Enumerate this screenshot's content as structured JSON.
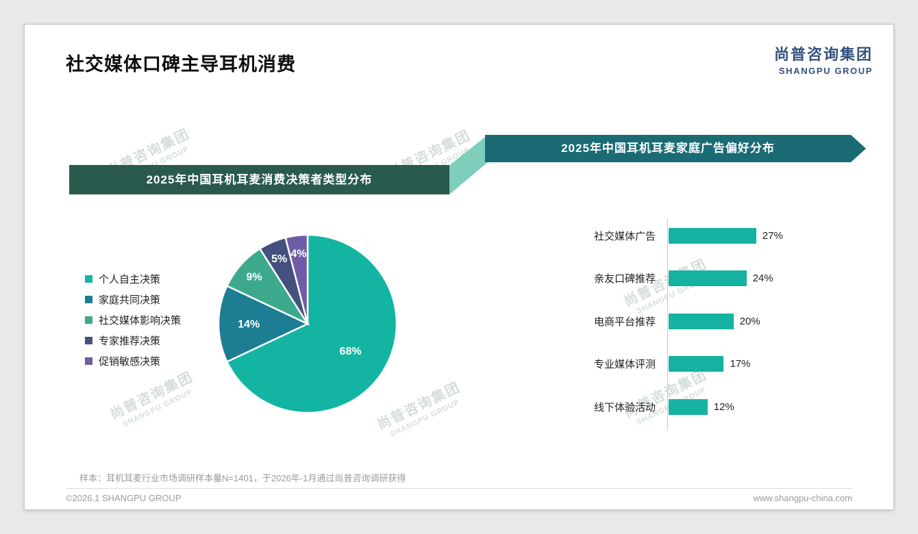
{
  "page": {
    "title": "社交媒体口碑主导耳机消费",
    "logo": {
      "cn": "尚普咨询集团",
      "en": "SHANGPU GROUP"
    },
    "watermark": {
      "cn": "尚普咨询集团",
      "en": "SHANGPU GROUP"
    },
    "footnote": "样本：耳机耳麦行业市场调研样本量N=1401，于2026年-1月通过尚普咨询调研获得",
    "footer": {
      "left": "©2026.1 SHANGPU GROUP",
      "right": "www.shangpu-china.com"
    }
  },
  "colors": {
    "banner_left_bg": "#2a5a4e",
    "banner_right_bg": "#1a6b74",
    "connector": "#7fcdbb",
    "bar": "#16b2a2",
    "logo_blue": "#33517e",
    "pie_border": "#ffffff"
  },
  "chart_data": [
    {
      "type": "pie",
      "title": "2025年中国耳机耳麦消费决策者类型分布",
      "legend_position": "left",
      "value_suffix": "%",
      "slices": [
        {
          "label": "个人自主决策",
          "value": 68,
          "color": "#13b5a2"
        },
        {
          "label": "家庭共同决策",
          "value": 14,
          "color": "#1d7d93"
        },
        {
          "label": "社交媒体影响决策",
          "value": 9,
          "color": "#3ca98c"
        },
        {
          "label": "专家推荐决策",
          "value": 5,
          "color": "#44517f"
        },
        {
          "label": "促销敏感决策",
          "value": 4,
          "color": "#6e5ca6"
        }
      ]
    },
    {
      "type": "bar",
      "orientation": "horizontal",
      "title": "2025年中国耳机耳麦家庭广告偏好分布",
      "categories": [
        "社交媒体广告",
        "亲友口碑推荐",
        "电商平台推荐",
        "专业媒体评测",
        "线下体验活动"
      ],
      "values": [
        27,
        24,
        20,
        17,
        12
      ],
      "value_suffix": "%",
      "xlim": [
        0,
        30
      ],
      "bar_color": "#16b2a2",
      "grid": false,
      "legend": false
    }
  ]
}
